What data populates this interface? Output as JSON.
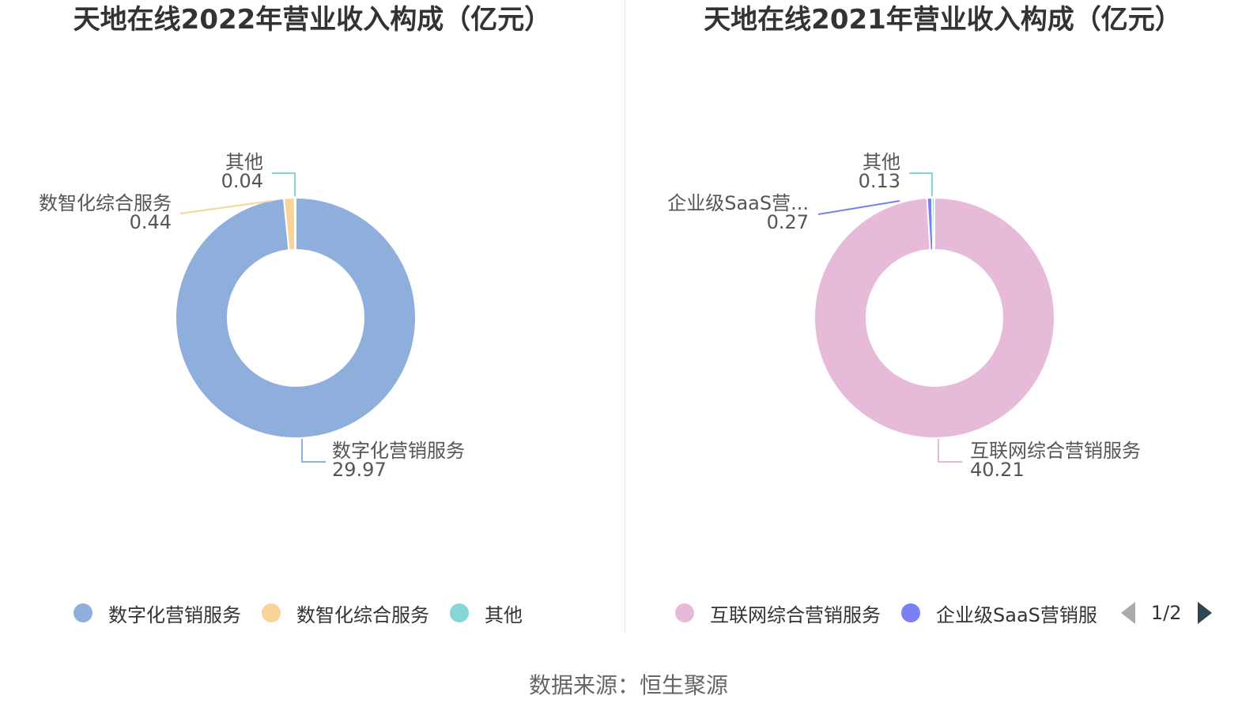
{
  "chart_data": [
    {
      "type": "pie",
      "variant": "donut",
      "title": "天地在线2022年营业收入构成（亿元）",
      "slices": [
        {
          "name": "数字化营销服务",
          "value": 29.97,
          "label_value": "29.97",
          "color": "#8eaedb"
        },
        {
          "name": "数智化综合服务",
          "value": 0.44,
          "label_value": "0.44",
          "color": "#f8d49b"
        },
        {
          "name": "其他",
          "value": 0.04,
          "label_value": "0.04",
          "color": "#86d5d8"
        }
      ],
      "legend": {
        "placement": "bottom",
        "items": [
          "数字化营销服务",
          "数智化综合服务",
          "其他"
        ]
      }
    },
    {
      "type": "pie",
      "variant": "donut",
      "title": "天地在线2021年营业收入构成（亿元）",
      "slices": [
        {
          "name": "互联网综合营销服务",
          "display_name": "互联网综合营销服务",
          "value": 40.21,
          "label_value": "40.21",
          "color": "#e8bad9"
        },
        {
          "name": "企业级SaaS营销服务",
          "display_name": "企业级SaaS营...",
          "value": 0.27,
          "label_value": "0.27",
          "color": "#7b7ff4"
        },
        {
          "name": "其他",
          "display_name": "其他",
          "value": 0.13,
          "label_value": "0.13",
          "color": "#86d5d8"
        }
      ],
      "legend": {
        "placement": "bottom",
        "items": [
          "互联网综合营销服务",
          "企业级SaaS营销服"
        ],
        "page": "1/2"
      }
    }
  ],
  "source": "数据来源：恒生聚源"
}
